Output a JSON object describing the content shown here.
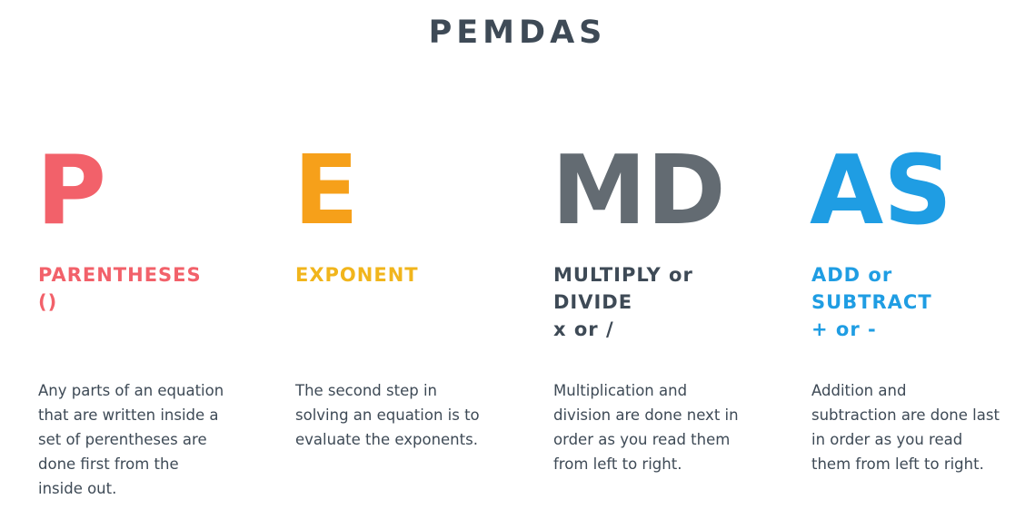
{
  "title": "PEMDAS",
  "colors": {
    "parentheses": "#f2616a",
    "exponent": "#f6a01a",
    "multiply_divide": "#636b72",
    "add_subtract": "#1f9de3",
    "text": "#3e4a56"
  },
  "columns": [
    {
      "letters": "P",
      "heading": "PARENTHESES\n()",
      "description": "Any parts of an equation\nthat are written inside a\nset of perentheses are\ndone first from the\ninside out."
    },
    {
      "letters": "E",
      "heading": "EXPONENT",
      "description": "The second step in\nsolving an equation is to\nevaluate the exponents."
    },
    {
      "letters": "MD",
      "heading": "MULTIPLY or\nDIVIDE\nx or /",
      "description": "Multiplication and\ndivision are done next in\norder as you read them\nfrom left to right."
    },
    {
      "letters": "AS",
      "heading": "ADD or\nSUBTRACT\n+ or -",
      "description": "Addition and\nsubtraction are done last\nin order as you read\nthem from left to right."
    }
  ]
}
